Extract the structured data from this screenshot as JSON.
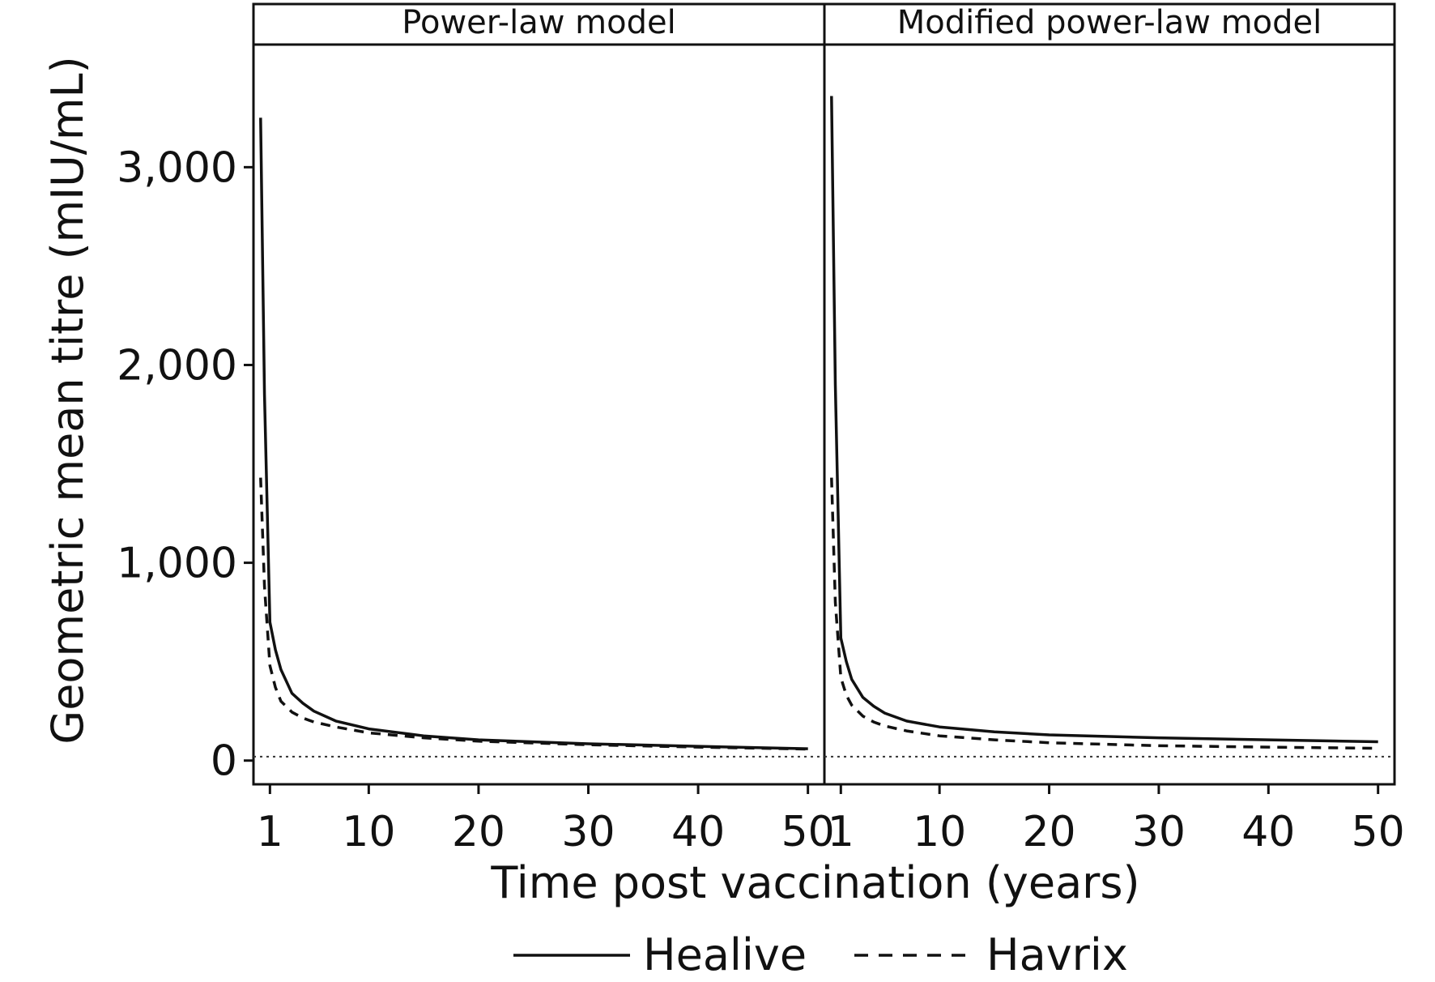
{
  "chart_data": {
    "type": "line",
    "ylabel": "Geometric mean titre (mIU/mL)",
    "xlabel": "Time post vaccination (years)",
    "xlim": [
      -0.5,
      51.5
    ],
    "ylim": [
      -120,
      3620
    ],
    "x_ticks": [
      1,
      10,
      20,
      30,
      40,
      50
    ],
    "x_tick_labels": [
      "1",
      "10",
      "20",
      "30",
      "40",
      "50"
    ],
    "y_ticks": [
      0,
      1000,
      2000,
      3000
    ],
    "y_tick_labels": [
      "0",
      "1,000",
      "2,000",
      "3,000"
    ],
    "reference_line": {
      "y": 20,
      "style": "dotted"
    },
    "grid": false,
    "legend": {
      "position": "bottom",
      "entries": [
        {
          "name": "Healive",
          "style": "solid"
        },
        {
          "name": "Havrix",
          "style": "dashed"
        }
      ]
    },
    "panels": [
      {
        "title": "Power-law model",
        "series": [
          {
            "name": "Healive",
            "style": "solid",
            "x": [
              0.15,
              0.5,
              1,
              1.5,
              2,
              3,
              4,
              5,
              7,
              10,
              15,
              20,
              30,
              40,
              50
            ],
            "y": [
              3250,
              1850,
              700,
              560,
              460,
              340,
              290,
              250,
              200,
              160,
              125,
              105,
              85,
              72,
              60
            ]
          },
          {
            "name": "Havrix",
            "style": "dashed",
            "x": [
              0.15,
              0.5,
              1,
              1.5,
              2,
              3,
              4,
              5,
              7,
              10,
              15,
              20,
              30,
              40,
              50
            ],
            "y": [
              1430,
              880,
              480,
              370,
              300,
              245,
              215,
              195,
              170,
              140,
              115,
              98,
              80,
              68,
              58
            ]
          }
        ]
      },
      {
        "title": "Modified power-law model",
        "series": [
          {
            "name": "Healive",
            "style": "solid",
            "x": [
              0.15,
              0.5,
              1,
              1.5,
              2,
              3,
              4,
              5,
              7,
              10,
              15,
              20,
              30,
              40,
              50
            ],
            "y": [
              3360,
              1900,
              620,
              500,
              410,
              320,
              275,
              240,
              200,
              170,
              145,
              130,
              115,
              105,
              95
            ]
          },
          {
            "name": "Havrix",
            "style": "dashed",
            "x": [
              0.15,
              0.5,
              1,
              1.5,
              2,
              3,
              4,
              5,
              7,
              10,
              15,
              20,
              30,
              40,
              50
            ],
            "y": [
              1430,
              800,
              420,
              330,
              280,
              225,
              195,
              175,
              150,
              125,
              105,
              90,
              75,
              68,
              62
            ]
          }
        ]
      }
    ]
  }
}
